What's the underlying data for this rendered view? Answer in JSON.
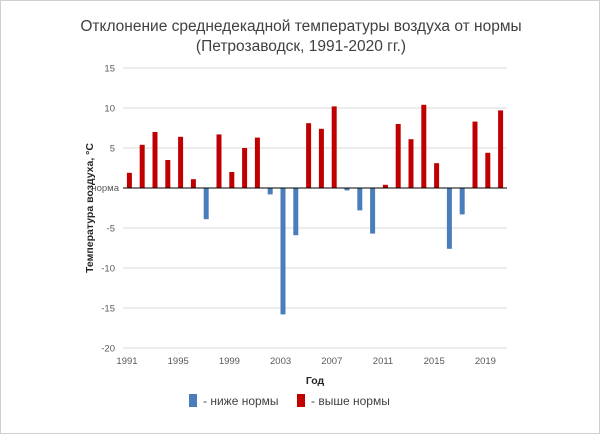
{
  "chart_data": {
    "type": "bar",
    "title": "Отклонение среднедекадной температуры воздуха от нормы",
    "subtitle": "(Петрозаводск, 1991-2020 гг.)",
    "xlabel": "Год",
    "ylabel": "Температура воздуха, °С",
    "norm_label": "норма",
    "ylim": [
      -20,
      15
    ],
    "yticks": [
      15,
      10,
      5,
      0,
      -5,
      -10,
      -15,
      -20
    ],
    "xticks": [
      1991,
      1995,
      1999,
      2003,
      2007,
      2011,
      2015,
      2019
    ],
    "grid": true,
    "legend_position": "bottom",
    "colors": {
      "below": "#4a7ebb",
      "above": "#c00000",
      "grid": "#d9d9d9",
      "zero_line": "#000000"
    },
    "legend": [
      {
        "key": "below",
        "label": "- ниже нормы"
      },
      {
        "key": "above",
        "label": "- выше нормы"
      }
    ],
    "x": [
      1991,
      1992,
      1993,
      1994,
      1995,
      1996,
      1997,
      1998,
      1999,
      2000,
      2001,
      2002,
      2003,
      2004,
      2005,
      2006,
      2007,
      2008,
      2009,
      2010,
      2011,
      2012,
      2013,
      2014,
      2015,
      2016,
      2017,
      2018,
      2019,
      2020
    ],
    "values": [
      1.9,
      5.4,
      7.0,
      3.5,
      6.4,
      1.1,
      -3.9,
      6.7,
      2.0,
      5.0,
      6.3,
      -0.8,
      -15.8,
      -5.9,
      8.1,
      7.4,
      10.2,
      -0.3,
      -2.8,
      -5.7,
      0.4,
      8.0,
      6.1,
      10.4,
      3.1,
      -7.6,
      -3.3,
      8.3,
      4.4,
      9.7
    ]
  }
}
